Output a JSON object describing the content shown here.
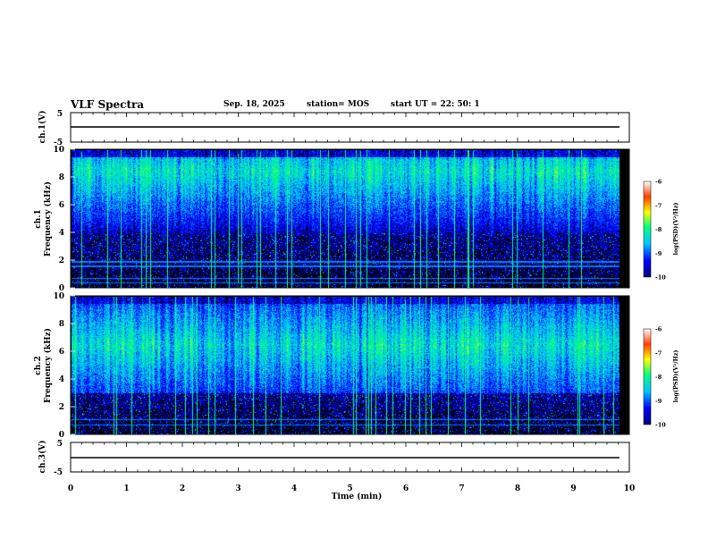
{
  "header": {
    "title": "VLF Spectra",
    "date": "Sep. 18, 2025",
    "station": "station= MOS",
    "start_time": "start  UT =   22: 50: 1"
  },
  "colors": {
    "background_panel": "#000000",
    "colormap": [
      "#00007a",
      "#0000ff",
      "#00c8ff",
      "#00ff80",
      "#ffff00",
      "#ff4000",
      "#ffffff"
    ]
  },
  "chart_data": [
    {
      "type": "line",
      "panel": "ch1-waveform",
      "ylabel": "ch.1(V)",
      "yticks": [
        "5",
        "-5"
      ],
      "ylim": [
        -5,
        5
      ],
      "x": [
        0,
        9.82
      ],
      "values": [
        0,
        0
      ]
    },
    {
      "type": "heatmap",
      "panel": "ch1-spectrogram",
      "ylabel_line1": "ch.1",
      "ylabel_line2": "Frequency (kHz)",
      "yticks": [
        "0",
        "2",
        "4",
        "6",
        "8",
        "10"
      ],
      "ylim": [
        0,
        10
      ],
      "xlim": [
        0,
        9.82
      ],
      "band_lo_khz": 4,
      "band_hi_khz": 9.5,
      "peak_khz": 8.5,
      "narrowband_lines_khz": [
        0.4,
        0.7,
        1.6,
        1.9
      ],
      "colorbar": {
        "label": "log(PSD)(V²/Hz)",
        "ticks": [
          "-6",
          "-7",
          "-8",
          "-9",
          "-10"
        ],
        "range": [
          -10,
          -6
        ]
      }
    },
    {
      "type": "heatmap",
      "panel": "ch2-spectrogram",
      "ylabel_line1": "ch.2",
      "ylabel_line2": "Frequency (kHz)",
      "yticks": [
        "0",
        "2",
        "4",
        "6",
        "8",
        "10"
      ],
      "ylim": [
        0,
        10
      ],
      "xlim": [
        0,
        9.82
      ],
      "band_lo_khz": 3,
      "band_hi_khz": 9.5,
      "peak_khz": 6.5,
      "narrowband_lines_khz": [
        0.7,
        1.1
      ],
      "colorbar": {
        "label": "log(PSD)(V²/Hz)",
        "ticks": [
          "-6",
          "-7",
          "-8",
          "-9",
          "-10"
        ],
        "range": [
          -10,
          -6
        ]
      }
    },
    {
      "type": "line",
      "panel": "ch3-waveform",
      "ylabel": "ch.3(V)",
      "yticks": [
        "5",
        "-5"
      ],
      "ylim": [
        -5,
        5
      ],
      "x": [
        0,
        9.82
      ],
      "values": [
        0,
        0
      ]
    }
  ],
  "x_axis": {
    "label": "Time (min)",
    "ticks": [
      "0",
      "1",
      "2",
      "3",
      "4",
      "5",
      "6",
      "7",
      "8",
      "9",
      "10"
    ],
    "xlim": [
      0,
      10
    ]
  }
}
